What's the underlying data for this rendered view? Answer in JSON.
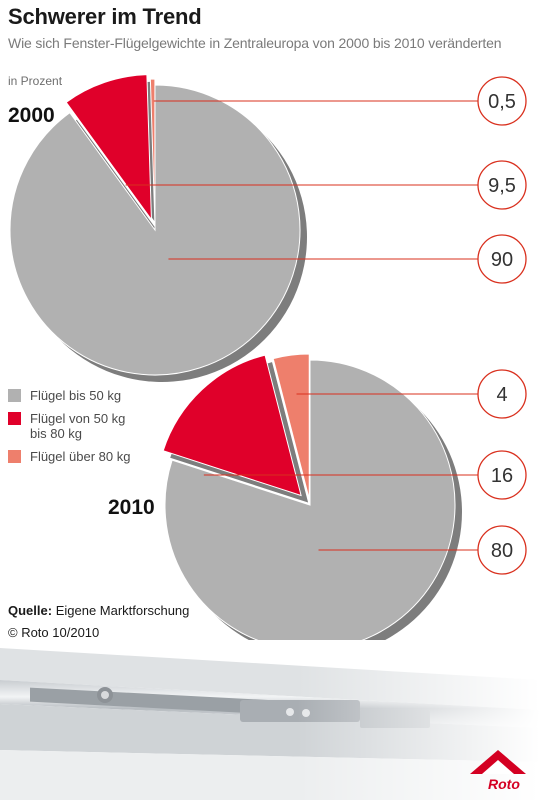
{
  "header": {
    "title": "Schwerer im Trend",
    "subtitle": "Wie sich Fenster-Flügelgewichte in Zentraleuropa von 2000 bis 2010 veränderten",
    "unit": "in Prozent"
  },
  "chart_data": [
    {
      "type": "pie",
      "title": "2000",
      "categories": [
        "Flügel bis 50 kg",
        "Flügel von 50 kg bis 80 kg",
        "Flügel über 80 kg"
      ],
      "values": [
        90,
        9.5,
        0.5
      ],
      "labels": [
        "90",
        "9,5",
        "0,5"
      ]
    },
    {
      "type": "pie",
      "title": "2010",
      "categories": [
        "Flügel bis 50 kg",
        "Flügel von 50 kg bis 80 kg",
        "Flügel über 80 kg"
      ],
      "values": [
        80,
        16,
        4
      ],
      "labels": [
        "80",
        "16",
        "4"
      ]
    }
  ],
  "colors": {
    "light": "#b1b1b1",
    "medium": "#e0002a",
    "heavy": "#ee7f6c",
    "shadow": "#7d7d7d",
    "callout": "#d9301e"
  },
  "legend": {
    "items": [
      {
        "label_lines": [
          "Flügel bis 50 kg"
        ],
        "color": "#b1b1b1"
      },
      {
        "label_lines": [
          "Flügel von 50 kg",
          "bis 80 kg"
        ],
        "color": "#e0002a"
      },
      {
        "label_lines": [
          "Flügel über 80 kg"
        ],
        "color": "#ee7f6c"
      }
    ]
  },
  "footer": {
    "source_label": "Quelle:",
    "source_text": "Eigene Marktforschung",
    "copyright": "© Roto 10/2010",
    "logo": "Roto"
  }
}
